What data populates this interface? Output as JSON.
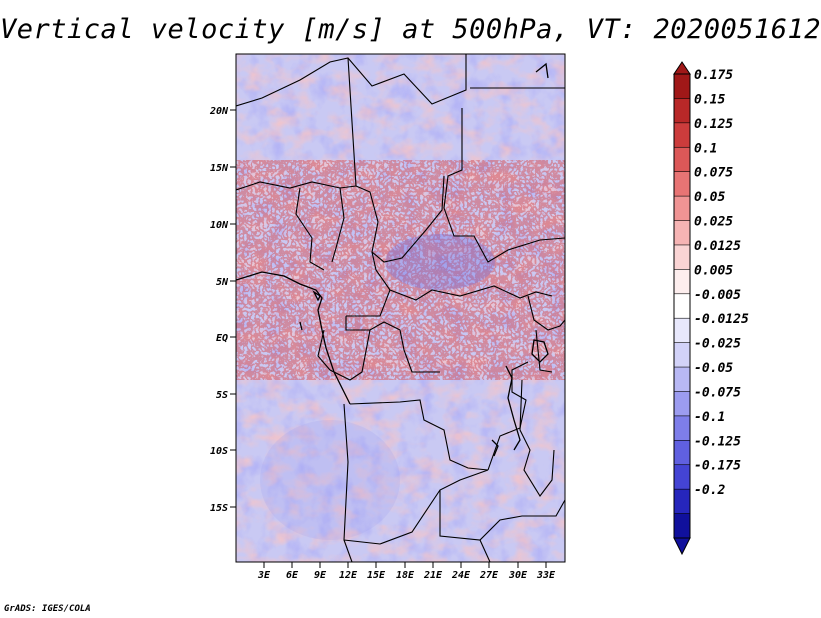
{
  "title": "Vertical velocity [m/s] at 500hPa, VT: 2020051612",
  "footer": "GrADS: IGES/COLA",
  "map": {
    "lon_labels": [
      "3E",
      "6E",
      "9E",
      "12E",
      "15E",
      "18E",
      "21E",
      "24E",
      "27E",
      "30E",
      "33E"
    ],
    "lat_labels": [
      "20N",
      "15N",
      "10N",
      "5N",
      "EQ",
      "5S",
      "10S",
      "15S"
    ]
  },
  "colorbar": {
    "labels": [
      "0.175",
      "0.15",
      "0.125",
      "0.1",
      "0.075",
      "0.05",
      "0.025",
      "0.0125",
      "0.005",
      "-0.005",
      "-0.0125",
      "-0.025",
      "-0.05",
      "-0.075",
      "-0.1",
      "-0.125",
      "-0.175",
      "-0.2"
    ],
    "colors": [
      "#a01818",
      "#b82828",
      "#cc3c3c",
      "#dc5858",
      "#e87474",
      "#f09494",
      "#f6b4b4",
      "#fad4d4",
      "#fdeeee",
      "#ffffff",
      "#e8e8fc",
      "#d2d2f8",
      "#b8b8f4",
      "#9c9cf0",
      "#7e7eea",
      "#6060e0",
      "#4444d4",
      "#2626bc",
      "#10109c"
    ]
  }
}
